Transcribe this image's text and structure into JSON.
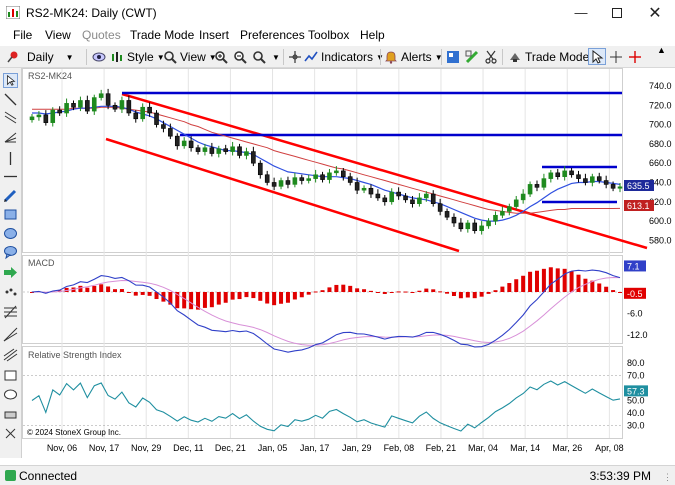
{
  "window": {
    "title": "RS2-MK24: Daily (CWT)"
  },
  "menu": [
    {
      "label": "File",
      "enabled": true
    },
    {
      "label": "View",
      "enabled": true
    },
    {
      "label": "Quotes",
      "enabled": false
    },
    {
      "label": "Trade Mode",
      "enabled": true
    },
    {
      "label": "Insert",
      "enabled": true
    },
    {
      "label": "Preferences",
      "enabled": true
    },
    {
      "label": "Toolbox",
      "enabled": true
    },
    {
      "label": "Help",
      "enabled": true
    }
  ],
  "toolbar": {
    "interval": "Daily",
    "style": "Style",
    "view": "View",
    "indicators": "Indicators",
    "alerts": "Alerts",
    "trade_mode": "Trade Mode"
  },
  "chart": {
    "symbol_label": "RS2-MK24",
    "macd_label": "MACD",
    "rsi_label": "Relative Strength Index",
    "copyright": "© 2024 StoneX Group Inc.",
    "price_ticks": [
      "740.0",
      "720.0",
      "700.0",
      "680.0",
      "660.0",
      "640.0",
      "620.0",
      "600.0",
      "580.0"
    ],
    "last_price": "635.5",
    "ma_value": "613.1",
    "macd_ticks": [
      "7.1",
      "-0.5",
      "-6.0",
      "-12.0"
    ],
    "rsi_ticks": [
      "80.0",
      "70.0",
      "57.3",
      "50.0",
      "40.0",
      "30.0"
    ],
    "date_labels": [
      "Nov, 06",
      "Nov, 17",
      "Nov, 29",
      "Dec, 11",
      "Dec, 21",
      "Jan, 05",
      "Jan, 17",
      "Jan, 29",
      "Feb, 08",
      "Feb, 21",
      "Mar, 04",
      "Mar, 14",
      "Mar, 26",
      "Apr, 08"
    ],
    "colors": {
      "up": "#1e8a1e",
      "down": "#000000",
      "trendline": "#ff0000",
      "support": "#0000cc",
      "ma_fast": "#3050e0",
      "ma_slow": "#d04040",
      "rsi": "#1f8fa0",
      "macd_hist": "#e00000"
    }
  },
  "chart_data": {
    "type": "candlestick",
    "title": "RS2-MK24: Daily (CWT)",
    "ylim": [
      570,
      750
    ],
    "x_labels": [
      "Nov, 06",
      "Nov, 17",
      "Nov, 29",
      "Dec, 11",
      "Dec, 21",
      "Jan, 05",
      "Jan, 17",
      "Jan, 29",
      "Feb, 08",
      "Feb, 21",
      "Mar, 04",
      "Mar, 14",
      "Mar, 26",
      "Apr, 08"
    ],
    "close": [
      708,
      710,
      702,
      715,
      712,
      722,
      718,
      725,
      714,
      728,
      732,
      720,
      716,
      725,
      712,
      706,
      718,
      712,
      700,
      696,
      688,
      678,
      683,
      676,
      672,
      676,
      670,
      675,
      672,
      677,
      668,
      672,
      660,
      648,
      640,
      636,
      642,
      638,
      645,
      642,
      644,
      648,
      643,
      650,
      652,
      646,
      640,
      632,
      634,
      628,
      624,
      620,
      630,
      626,
      622,
      618,
      624,
      628,
      618,
      610,
      604,
      598,
      592,
      598,
      590,
      595,
      600,
      606,
      610,
      615,
      622,
      628,
      638,
      635,
      644,
      650,
      646,
      652,
      648,
      644,
      640,
      646,
      642,
      638,
      634,
      635.5
    ],
    "ma_fast": [
      712,
      712,
      711,
      712,
      713,
      714,
      716,
      717,
      717,
      718,
      719,
      719,
      719,
      718,
      716,
      713,
      711,
      709,
      706,
      702,
      698,
      694,
      690,
      686,
      682,
      679,
      677,
      675,
      673,
      673,
      672,
      671,
      669,
      665,
      661,
      657,
      654,
      651,
      650,
      649,
      648,
      647,
      646,
      646,
      646,
      645,
      644,
      642,
      640,
      638,
      635,
      632,
      630,
      628,
      626,
      624,
      623,
      622,
      620,
      618,
      615,
      612,
      609,
      606,
      603,
      601,
      600,
      600,
      601,
      603,
      606,
      610,
      615,
      619,
      624,
      629,
      633,
      636,
      639,
      640,
      640,
      641,
      641,
      640,
      639,
      638
    ],
    "ma_slow": [
      716,
      716,
      716,
      716,
      716,
      716,
      717,
      717,
      717,
      717,
      718,
      718,
      718,
      717,
      716,
      715,
      714,
      713,
      711,
      709,
      707,
      705,
      703,
      700,
      698,
      695,
      692,
      690,
      688,
      686,
      684,
      682,
      680,
      678,
      676,
      673,
      671,
      669,
      667,
      665,
      663,
      661,
      659,
      657,
      655,
      654,
      652,
      650,
      648,
      646,
      644,
      642,
      640,
      638,
      636,
      634,
      632,
      630,
      628,
      626,
      624,
      622,
      620,
      618,
      616,
      614,
      612,
      611,
      610,
      609,
      608,
      608,
      608,
      609,
      610,
      611,
      612,
      612,
      613,
      613,
      613,
      613,
      613,
      613,
      613,
      613.1
    ],
    "macd_last": 7.1,
    "signal_last": -0.5,
    "rsi_last": 57.3,
    "resistance_levels": [
      735,
      690,
      655
    ],
    "support_levels": [
      617
    ]
  }
}
